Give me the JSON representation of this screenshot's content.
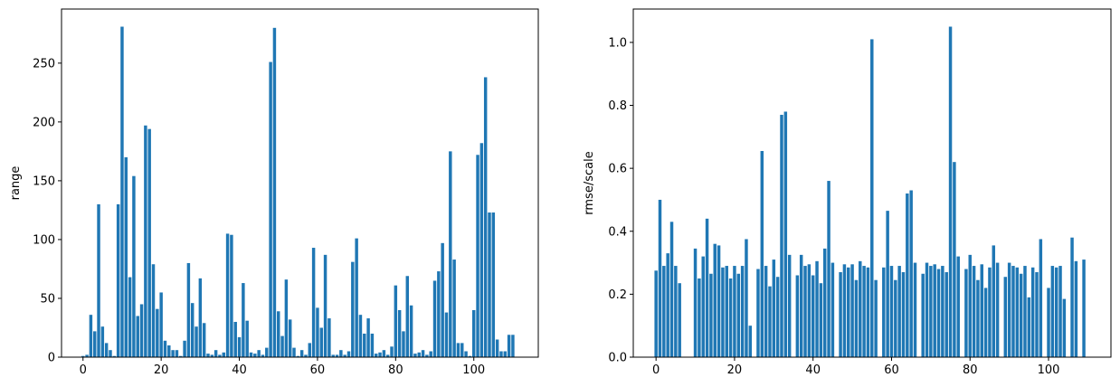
{
  "chart_data": [
    {
      "type": "bar",
      "ylabel": "range",
      "color": "#1f77b4",
      "x": [
        0,
        1,
        2,
        3,
        4,
        5,
        6,
        7,
        8,
        9,
        10,
        11,
        12,
        13,
        14,
        15,
        16,
        17,
        18,
        19,
        20,
        21,
        22,
        23,
        24,
        25,
        26,
        27,
        28,
        29,
        30,
        31,
        32,
        33,
        34,
        35,
        36,
        37,
        38,
        39,
        40,
        41,
        42,
        43,
        44,
        45,
        46,
        47,
        48,
        49,
        50,
        51,
        52,
        53,
        54,
        55,
        56,
        57,
        58,
        59,
        60,
        61,
        62,
        63,
        64,
        65,
        66,
        67,
        68,
        69,
        70,
        71,
        72,
        73,
        74,
        75,
        76,
        77,
        78,
        79,
        80,
        81,
        82,
        83,
        84,
        85,
        86,
        87,
        88,
        89,
        90,
        91,
        92,
        93,
        94,
        95,
        96,
        97,
        98,
        99,
        100,
        101,
        102,
        103,
        104,
        105,
        106,
        107,
        108,
        109,
        110
      ],
      "values": [
        1,
        2,
        36,
        22,
        130,
        26,
        12,
        6,
        1,
        130,
        281,
        170,
        68,
        154,
        35,
        45,
        197,
        194,
        79,
        41,
        55,
        14,
        10,
        6,
        6,
        1,
        14,
        80,
        46,
        26,
        67,
        29,
        3,
        2,
        6,
        2,
        4,
        105,
        104,
        30,
        17,
        63,
        31,
        4,
        3,
        6,
        2,
        8,
        251,
        280,
        39,
        18,
        66,
        32,
        8,
        1,
        6,
        2,
        12,
        93,
        42,
        25,
        87,
        33,
        2,
        2,
        6,
        2,
        5,
        81,
        101,
        36,
        20,
        33,
        20,
        3,
        4,
        6,
        2,
        9,
        61,
        40,
        22,
        69,
        44,
        3,
        4,
        6,
        2,
        5,
        65,
        73,
        97,
        38,
        175,
        83,
        12,
        12,
        5,
        1,
        40,
        172,
        182,
        238,
        123,
        123,
        15,
        5,
        5,
        19,
        19
      ],
      "xlim": [
        -5.5,
        116.5
      ],
      "ylim": [
        0,
        296
      ],
      "xticks": [
        0,
        20,
        40,
        60,
        80,
        100
      ],
      "yticks": [
        0,
        50,
        100,
        150,
        200,
        250
      ]
    },
    {
      "type": "bar",
      "ylabel": "rmse/scale",
      "color": "#1f77b4",
      "x": [
        0,
        1,
        2,
        3,
        4,
        5,
        6,
        7,
        8,
        9,
        10,
        11,
        12,
        13,
        14,
        15,
        16,
        17,
        18,
        19,
        20,
        21,
        22,
        23,
        24,
        25,
        26,
        27,
        28,
        29,
        30,
        31,
        32,
        33,
        34,
        35,
        36,
        37,
        38,
        39,
        40,
        41,
        42,
        43,
        44,
        45,
        46,
        47,
        48,
        49,
        50,
        51,
        52,
        53,
        54,
        55,
        56,
        57,
        58,
        59,
        60,
        61,
        62,
        63,
        64,
        65,
        66,
        67,
        68,
        69,
        70,
        71,
        72,
        73,
        74,
        75,
        76,
        77,
        78,
        79,
        80,
        81,
        82,
        83,
        84,
        85,
        86,
        87,
        88,
        89,
        90,
        91,
        92,
        93,
        94,
        95,
        96,
        97,
        98,
        99,
        100,
        101,
        102,
        103,
        104,
        105,
        106,
        107,
        108,
        109
      ],
      "values": [
        0.275,
        0.5,
        0.29,
        0.33,
        0.43,
        0.29,
        0.235,
        null,
        null,
        null,
        0.345,
        0.25,
        0.32,
        0.44,
        0.265,
        0.36,
        0.355,
        0.285,
        0.29,
        0.25,
        0.29,
        0.265,
        0.29,
        0.375,
        0.1,
        null,
        0.28,
        0.655,
        0.29,
        0.225,
        0.31,
        0.255,
        0.77,
        0.78,
        0.325,
        null,
        0.26,
        0.325,
        0.29,
        0.295,
        0.26,
        0.305,
        0.235,
        0.345,
        0.56,
        0.3,
        null,
        0.27,
        0.295,
        0.285,
        0.295,
        0.245,
        0.305,
        0.29,
        0.285,
        1.01,
        0.245,
        null,
        0.285,
        0.465,
        0.29,
        0.245,
        0.29,
        0.27,
        0.52,
        0.53,
        0.3,
        null,
        0.265,
        0.3,
        0.29,
        0.295,
        0.28,
        0.29,
        0.27,
        1.05,
        0.62,
        0.32,
        null,
        0.28,
        0.325,
        0.29,
        0.245,
        0.295,
        0.22,
        0.285,
        0.355,
        0.3,
        null,
        0.255,
        0.3,
        0.29,
        0.285,
        0.265,
        0.29,
        0.19,
        0.285,
        0.27,
        0.375,
        null,
        0.22,
        0.29,
        0.285,
        0.29,
        0.185,
        null,
        0.38,
        0.305,
        null,
        0.31
      ],
      "xlim": [
        -5.8,
        115.9
      ],
      "ylim": [
        0,
        1.106
      ],
      "xticks": [
        0,
        20,
        40,
        60,
        80,
        100
      ],
      "yticks": [
        {
          "value": 0,
          "label": "0.0"
        },
        0.2,
        0.4,
        0.6,
        0.8,
        {
          "value": 1,
          "label": "1.0"
        }
      ]
    }
  ]
}
